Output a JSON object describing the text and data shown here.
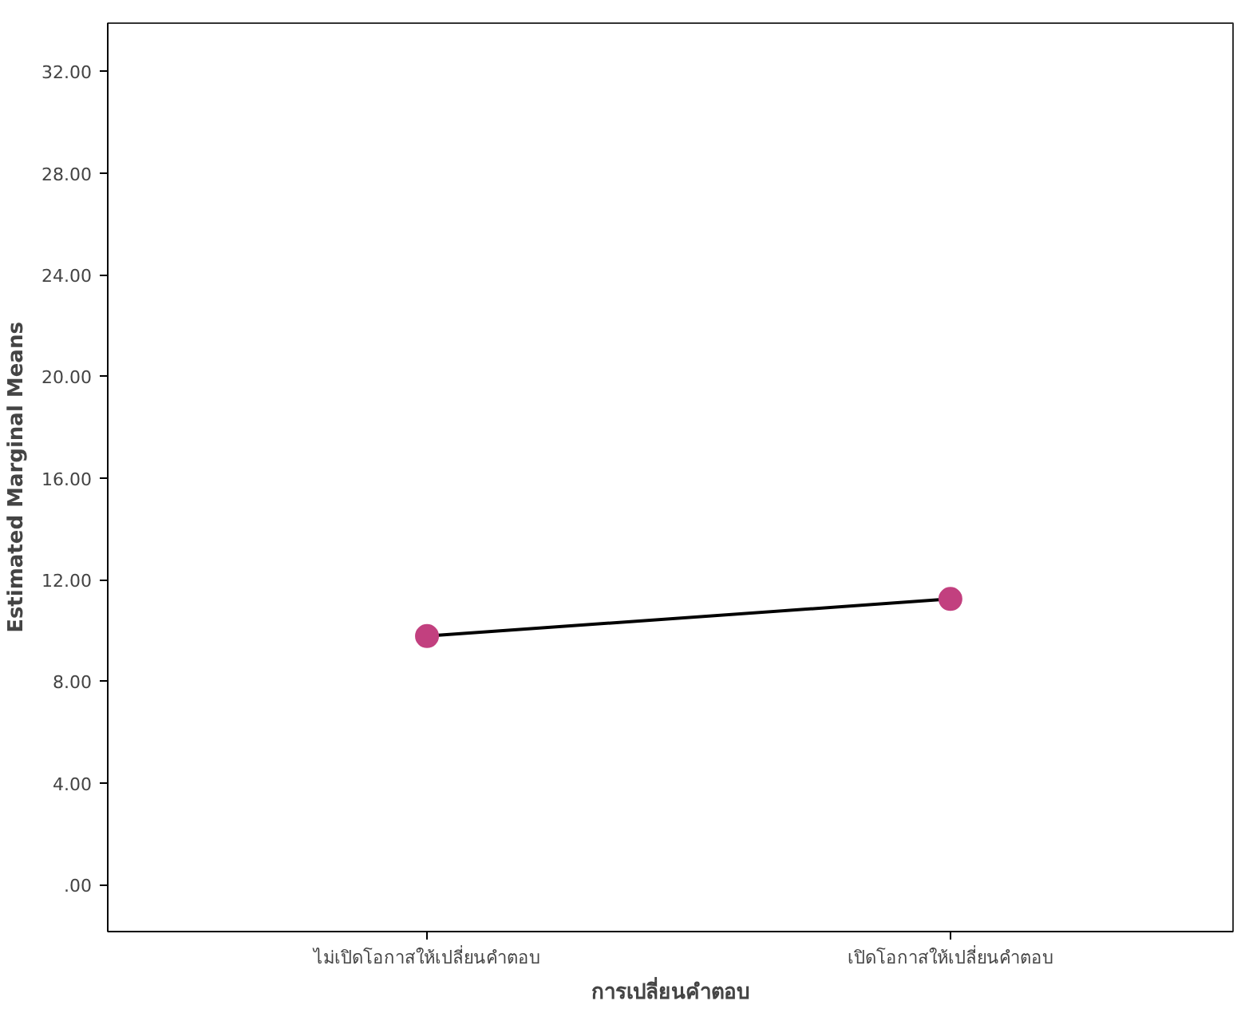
{
  "chart_data": {
    "type": "line",
    "xlabel": "การเปลี่ยนคำตอบ",
    "ylabel": "Estimated Marginal Means",
    "categories": [
      "ไม่เปิดโอกาสให้เปลี่ยนคำตอบ",
      "เปิดโอกาสให้เปลี่ยนคำตอบ"
    ],
    "series": [
      {
        "color": "#c2407f",
        "values": [
          9.78,
          11.24
        ]
      }
    ],
    "ylim": [
      -1.85,
      33.9
    ],
    "yticks": [
      {
        "value": 0,
        "label": ".00"
      },
      {
        "value": 4,
        "label": "4.00"
      },
      {
        "value": 8,
        "label": "8.00"
      },
      {
        "value": 12,
        "label": "12.00"
      },
      {
        "value": 16,
        "label": "16.00"
      },
      {
        "value": 20,
        "label": "20.00"
      },
      {
        "value": 24,
        "label": "24.00"
      },
      {
        "value": 28,
        "label": "28.00"
      },
      {
        "value": 32,
        "label": "32.00"
      }
    ],
    "grid": false,
    "marker": "circle",
    "line_style": "solid"
  }
}
